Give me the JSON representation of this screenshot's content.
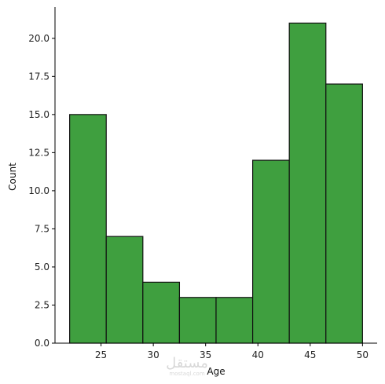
{
  "chart_data": {
    "type": "bar",
    "title": "",
    "xlabel": "Age",
    "ylabel": "Count",
    "bins": [
      {
        "x0": 22.0,
        "x1": 25.5,
        "value": 15
      },
      {
        "x0": 25.5,
        "x1": 29.0,
        "value": 7
      },
      {
        "x0": 29.0,
        "x1": 32.5,
        "value": 4
      },
      {
        "x0": 32.5,
        "x1": 36.0,
        "value": 3
      },
      {
        "x0": 36.0,
        "x1": 39.5,
        "value": 3
      },
      {
        "x0": 39.5,
        "x1": 43.0,
        "value": 12
      },
      {
        "x0": 43.0,
        "x1": 46.5,
        "value": 21
      },
      {
        "x0": 46.5,
        "x1": 50.0,
        "value": 17
      }
    ],
    "xlim": [
      20.6,
      51.4
    ],
    "ylim": [
      0,
      22.05
    ],
    "xticks": [
      25,
      30,
      35,
      40,
      45,
      50
    ],
    "xtick_labels": [
      "25",
      "30",
      "35",
      "40",
      "45",
      "50"
    ],
    "yticks": [
      0,
      2.5,
      5,
      7.5,
      10,
      12.5,
      15,
      17.5,
      20
    ],
    "ytick_labels": [
      "0.0",
      "2.5",
      "5.0",
      "7.5",
      "10.0",
      "12.5",
      "15.0",
      "17.5",
      "20.0"
    ],
    "grid": false,
    "bar_color": "#3f9f3f",
    "edge_color": "#111111"
  },
  "watermark": {
    "main": "مستقل",
    "sub": "mostaql.com"
  }
}
